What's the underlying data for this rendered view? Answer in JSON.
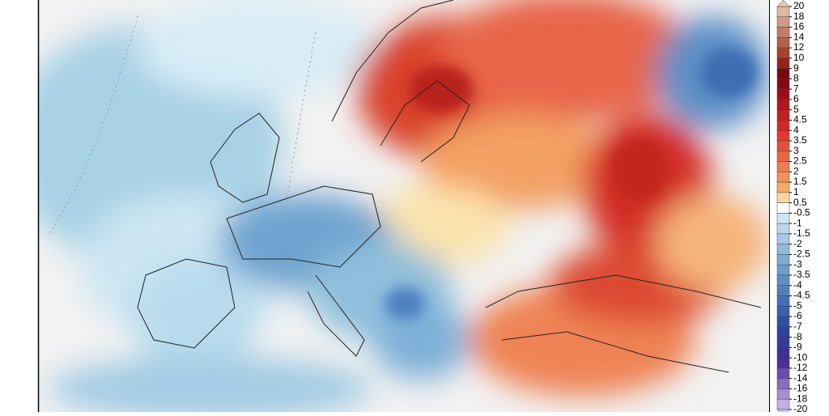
{
  "colorbar": {
    "labels": [
      20,
      18,
      16,
      14,
      12,
      10,
      9,
      8,
      7,
      6,
      5,
      4.5,
      4,
      3.5,
      3,
      2.5,
      2,
      1.5,
      1,
      0.5,
      -0.5,
      -1,
      -1.5,
      -2,
      -2.5,
      -3,
      -3.5,
      -4,
      -4.5,
      -5,
      -6,
      -7,
      -8,
      -9,
      -10,
      -12,
      -14,
      -16,
      -18,
      -20
    ]
  }
}
